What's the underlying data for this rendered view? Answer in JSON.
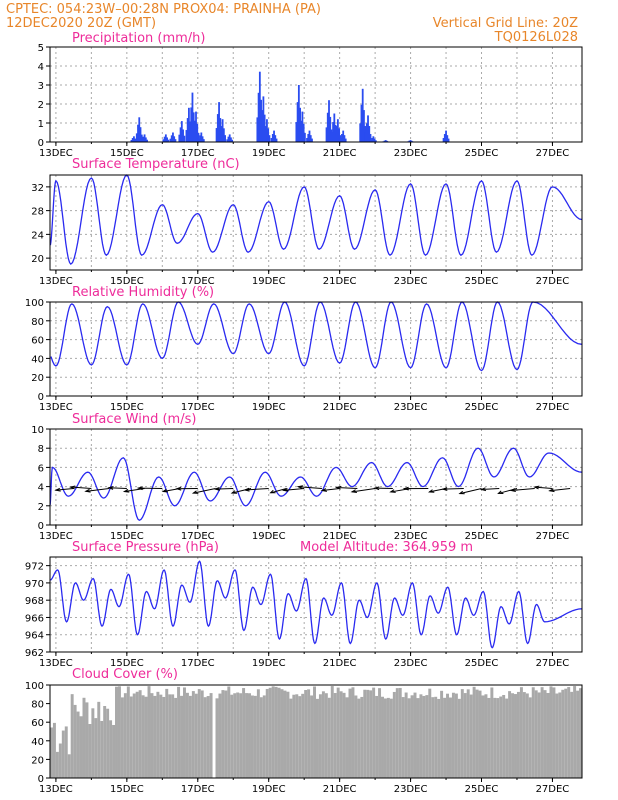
{
  "header": {
    "line1_left": "CPTEC:   054:23W–00:28N   PROX04: PRAINHA (PA)",
    "line2_left": "12DEC2020 20Z (GMT)",
    "line2_right": "Vertical Grid Line: 20Z",
    "line3_right": "TQ0126L028"
  },
  "x_ticks": [
    "13DEC",
    "15DEC",
    "17DEC",
    "19DEC",
    "21DEC",
    "23DEC",
    "25DEC",
    "27DEC"
  ],
  "colors": {
    "header": "#e8862a",
    "title": "#ee2c9a",
    "series": "#2a2af0",
    "bars": "#2a4cf0",
    "cloud": "#a9a9a9"
  },
  "chart_data": [
    {
      "type": "bar",
      "title": "Precipitation (mm/h)",
      "x": [
        "12DEC 20Z",
        "27DEC 20Z"
      ],
      "ylim": [
        0,
        5
      ],
      "yticks": [
        0,
        1,
        2,
        3,
        4,
        5
      ],
      "grid": true,
      "events": [
        {
          "day": 15.2,
          "value": 0.3
        },
        {
          "day": 15.35,
          "value": 1.3
        },
        {
          "day": 15.5,
          "value": 0.4
        },
        {
          "day": 16.1,
          "value": 0.4
        },
        {
          "day": 16.3,
          "value": 0.5
        },
        {
          "day": 16.55,
          "value": 1.1
        },
        {
          "day": 16.75,
          "value": 1.8
        },
        {
          "day": 16.85,
          "value": 2.6
        },
        {
          "day": 16.95,
          "value": 1.6
        },
        {
          "day": 17.1,
          "value": 0.5
        },
        {
          "day": 17.6,
          "value": 2.1
        },
        {
          "day": 17.7,
          "value": 1.2
        },
        {
          "day": 17.9,
          "value": 0.4
        },
        {
          "day": 18.75,
          "value": 3.7
        },
        {
          "day": 18.85,
          "value": 2.4
        },
        {
          "day": 18.95,
          "value": 1.2
        },
        {
          "day": 19.15,
          "value": 0.6
        },
        {
          "day": 19.85,
          "value": 3.0
        },
        {
          "day": 19.95,
          "value": 1.6
        },
        {
          "day": 20.15,
          "value": 0.6
        },
        {
          "day": 20.7,
          "value": 2.2
        },
        {
          "day": 20.85,
          "value": 1.5
        },
        {
          "day": 20.95,
          "value": 1.2
        },
        {
          "day": 21.1,
          "value": 0.6
        },
        {
          "day": 21.65,
          "value": 2.8
        },
        {
          "day": 21.8,
          "value": 1.4
        },
        {
          "day": 21.95,
          "value": 0.3
        },
        {
          "day": 22.3,
          "value": 0.1
        },
        {
          "day": 23.0,
          "value": 0.1
        },
        {
          "day": 24.0,
          "value": 0.6
        }
      ]
    },
    {
      "type": "line",
      "title": "Surface Temperature (nC)",
      "ylim": [
        18,
        34
      ],
      "yticks": [
        20,
        24,
        28,
        32
      ],
      "grid": true,
      "series": [
        {
          "daily_max": [
            33.0,
            33.5,
            34.0,
            29.0,
            27.5,
            29.0,
            29.5,
            32.0,
            30.5,
            31.5,
            32.5,
            32.5,
            33.0,
            33.0,
            32.0
          ],
          "daily_min": [
            19.0,
            20.5,
            20.5,
            22.5,
            21.0,
            21.0,
            21.5,
            21.5,
            21.5,
            20.5,
            20.5,
            20.5,
            21.0,
            20.5
          ]
        }
      ]
    },
    {
      "type": "line",
      "title": "Relative Humidity (%)",
      "ylim": [
        0,
        100
      ],
      "yticks": [
        0,
        20,
        40,
        60,
        80,
        100
      ],
      "grid": true,
      "series": [
        {
          "daily_min": [
            32,
            33,
            33,
            40,
            55,
            45,
            45,
            32,
            35,
            30,
            30,
            30,
            27,
            28
          ],
          "daily_max": [
            100,
            98,
            95,
            98,
            100,
            98,
            98,
            100,
            100,
            100,
            100,
            98,
            100,
            100,
            100
          ]
        }
      ]
    },
    {
      "type": "line",
      "title": "Surface Wind (m/s)",
      "ylim": [
        0,
        10
      ],
      "yticks": [
        0,
        2,
        4,
        6,
        8,
        10
      ],
      "grid": true,
      "series": [
        {
          "daily_min": [
            3.0,
            2.8,
            0.5,
            2.0,
            2.5,
            2.0,
            3.0,
            3.0,
            4.0,
            4.0,
            4.0,
            4.0,
            5.0,
            5.0
          ],
          "daily_max": [
            6.0,
            5.5,
            7.0,
            5.0,
            5.5,
            5.0,
            5.5,
            5.0,
            6.0,
            6.5,
            6.5,
            7.0,
            8.0,
            8.0,
            7.5
          ]
        }
      ],
      "vectors": "northeasterly barbs along 3.8 m/s"
    },
    {
      "type": "line",
      "title": "Surface Pressure (hPa)",
      "annotation": "Model Altitude: 364.959  m",
      "ylim": [
        962,
        973
      ],
      "yticks": [
        962,
        964,
        966,
        968,
        970,
        972
      ],
      "grid": true,
      "series": [
        {
          "daily_max": [
            971.5,
            970.5,
            971.0,
            971.5,
            972.5,
            971.5,
            971.0,
            970.5,
            970.0,
            970.0,
            970.0,
            969.5,
            969.0,
            969.0,
            968.0
          ],
          "daily_min": [
            965.5,
            965.0,
            964.0,
            965.0,
            965.0,
            964.5,
            963.5,
            963.0,
            963.0,
            963.5,
            964.0,
            964.0,
            962.5,
            963.0
          ]
        }
      ]
    },
    {
      "type": "bar",
      "title": "Cloud Cover (%)",
      "ylim": [
        0,
        100
      ],
      "yticks": [
        0,
        20,
        40,
        60,
        80,
        100
      ],
      "grid": false,
      "description_values": {
        "early_range": [
          10,
          95
        ],
        "late_typical": 95
      }
    }
  ]
}
